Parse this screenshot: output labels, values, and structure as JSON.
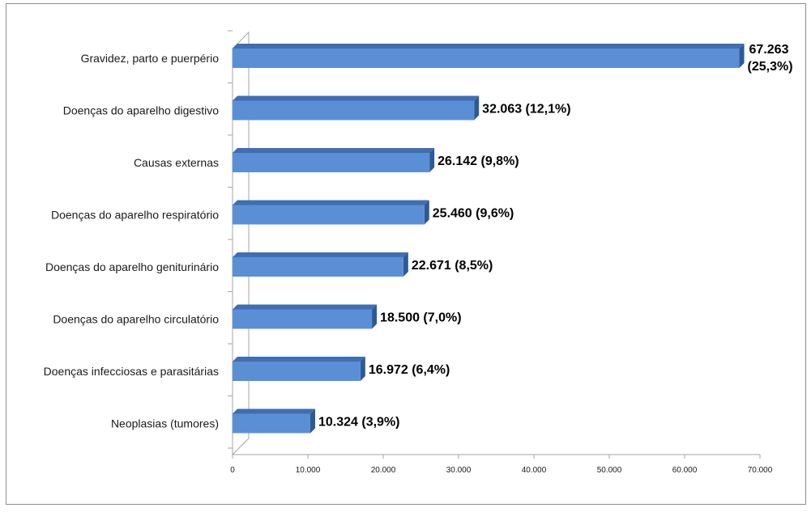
{
  "chart_data": {
    "type": "bar",
    "orientation": "horizontal",
    "style": "3d",
    "categories": [
      "Gravidez, parto e puerpério",
      "Doenças do aparelho digestivo",
      "Causas externas",
      "Doenças do aparelho respiratório",
      "Doenças do aparelho geniturinário",
      "Doenças do aparelho circulatório",
      "Doenças infecciosas e parasitárias",
      "Neoplasias (tumores)"
    ],
    "values": [
      67263,
      32063,
      26142,
      25460,
      22671,
      18500,
      16972,
      10324
    ],
    "data_labels": [
      [
        "67.263",
        "(25,3%)"
      ],
      [
        "32.063 (12,1%)"
      ],
      [
        "26.142 (9,8%)"
      ],
      [
        "25.460 (9,6%)"
      ],
      [
        "22.671 (8,5%)"
      ],
      [
        "18.500 (7,0%)"
      ],
      [
        "16.972 (6,4%)"
      ],
      [
        "10.324 (3,9%)"
      ]
    ],
    "xlim": [
      0,
      70000
    ],
    "xticks": [
      0,
      10000,
      20000,
      30000,
      40000,
      50000,
      60000,
      70000
    ],
    "xtick_labels": [
      "0",
      "10.000",
      "20.000",
      "30.000",
      "40.000",
      "50.000",
      "60.000",
      "70.000"
    ],
    "title": "",
    "xlabel": "",
    "ylabel": "",
    "grid": false,
    "legend": "none",
    "colors": {
      "bar_front": "#5a8fd6",
      "bar_top": "#3f6eb1",
      "bar_side": "#2e5a93",
      "axis": "#a6a6a6",
      "frame": "#8c8c8c"
    }
  }
}
